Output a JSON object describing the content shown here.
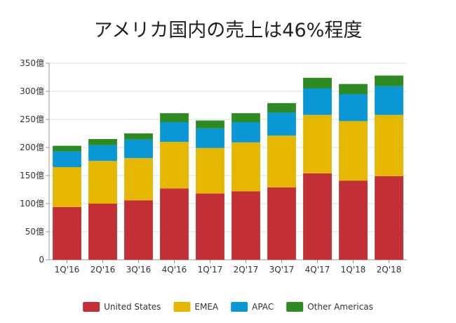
{
  "chart_data": {
    "type": "bar",
    "stacked": true,
    "title": "アメリカ国内の売上は46%程度",
    "categories": [
      "1Q'16",
      "2Q'16",
      "3Q'16",
      "4Q'16",
      "1Q'17",
      "2Q'17",
      "3Q'17",
      "4Q'17",
      "1Q'18",
      "2Q'18"
    ],
    "series": [
      {
        "name": "United States",
        "color": "#c22f35",
        "values": [
          94,
          100,
          106,
          127,
          118,
          122,
          129,
          154,
          141,
          149
        ]
      },
      {
        "name": "EMEA",
        "color": "#e5b700",
        "values": [
          71,
          76,
          75,
          83,
          81,
          87,
          92,
          104,
          106,
          109
        ]
      },
      {
        "name": "APAC",
        "color": "#0a97d6",
        "values": [
          28,
          28,
          33,
          35,
          35,
          36,
          41,
          47,
          48,
          51
        ]
      },
      {
        "name": "Other Americas",
        "color": "#2e8a22",
        "values": [
          10,
          11,
          11,
          16,
          14,
          16,
          17,
          19,
          18,
          19
        ]
      }
    ],
    "ylim": [
      0,
      350
    ],
    "yticks": [
      "0",
      "50億",
      "100億",
      "150億",
      "200億",
      "250億",
      "300億",
      "350億"
    ],
    "ytick_values": [
      0,
      50,
      100,
      150,
      200,
      250,
      300,
      350
    ],
    "xlabel": "",
    "ylabel": "",
    "legend": "bottom",
    "grid": true
  }
}
